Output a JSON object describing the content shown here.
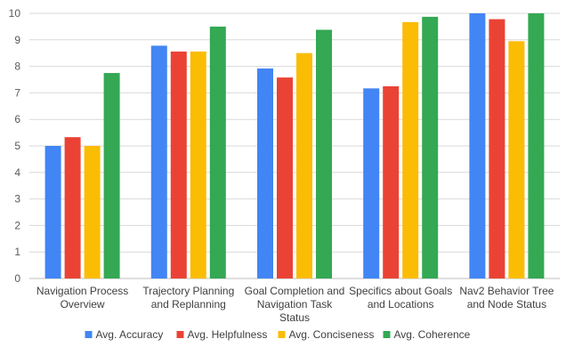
{
  "chart_data": {
    "type": "bar",
    "categories": [
      [
        "Navigation Process",
        "Overview"
      ],
      [
        "Trajectory Planning",
        "and Replanning"
      ],
      [
        "Goal Completion and",
        "Navigation Task",
        "Status"
      ],
      [
        "Specifics about Goals",
        "and Locations"
      ],
      [
        "Nav2 Behavior Tree",
        "and Node Status"
      ]
    ],
    "series": [
      {
        "name": "Avg. Accuracy",
        "color": "#4285f4",
        "values": [
          5.0,
          8.78,
          7.92,
          7.17,
          10.0
        ]
      },
      {
        "name": "Avg. Helpfulness",
        "color": "#ea4335",
        "values": [
          5.33,
          8.56,
          7.58,
          7.25,
          9.78
        ]
      },
      {
        "name": "Avg. Conciseness",
        "color": "#fbbc04",
        "values": [
          5.0,
          8.56,
          8.5,
          9.67,
          8.95
        ]
      },
      {
        "name": "Avg. Coherence",
        "color": "#34a853",
        "values": [
          7.75,
          9.5,
          9.38,
          9.87,
          10.0
        ]
      }
    ],
    "title": "",
    "xlabel": "",
    "ylabel": "",
    "ylim": [
      0,
      10
    ],
    "yticks": [
      0,
      1,
      2,
      3,
      4,
      5,
      6,
      7,
      8,
      9,
      10
    ],
    "grid": true,
    "legend_position": "bottom"
  }
}
